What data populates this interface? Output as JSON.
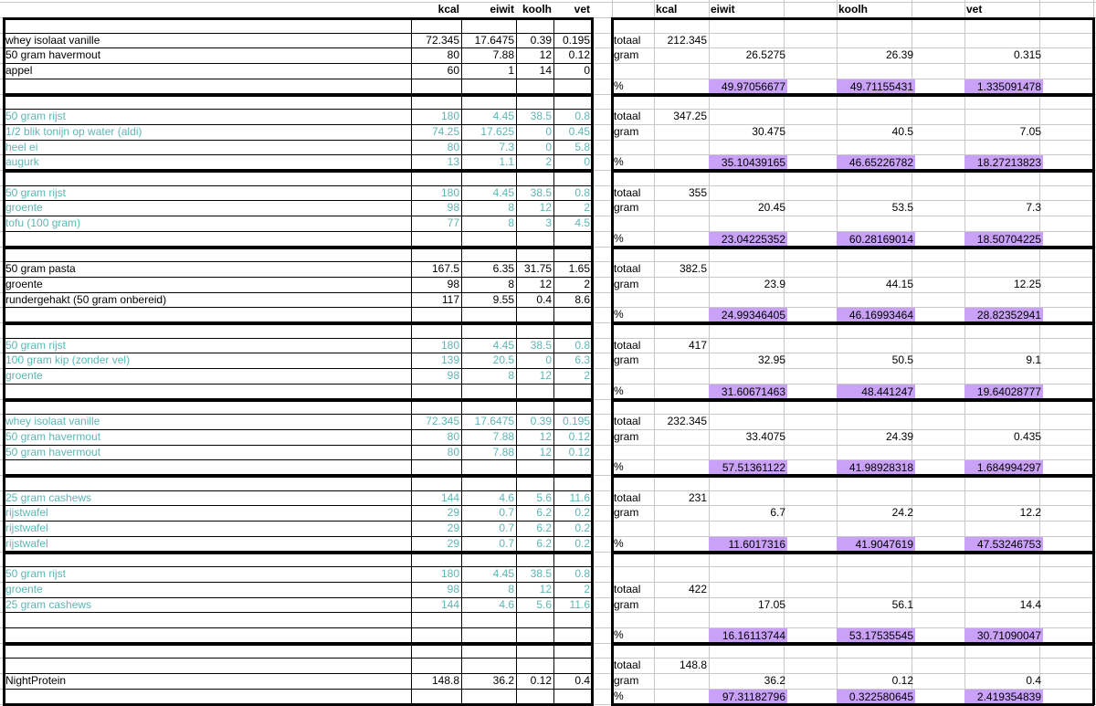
{
  "colors": {
    "teal_text": "#5cb6b6",
    "percent_fill": "#c9a2f7",
    "grid": "#c8c8c8"
  },
  "left": {
    "headers": [
      "kcal",
      "eiwit",
      "koolh",
      "vet"
    ],
    "blocks": [
      {
        "style": "black",
        "rows": [
          {},
          {
            "name": "whey isolaat vanille",
            "kcal": "72.345",
            "eiwit": "17.6475",
            "koolh": "0.39",
            "vet": "0.195"
          },
          {
            "name": "50 gram havermout",
            "kcal": "80",
            "eiwit": "7.88",
            "koolh": "12",
            "vet": "0.12"
          },
          {
            "name": "appel",
            "kcal": "60",
            "eiwit": "1",
            "koolh": "14",
            "vet": "0"
          },
          {}
        ]
      },
      {
        "style": "teal",
        "rows": [
          {},
          {
            "name": "50 gram rijst",
            "kcal": "180",
            "eiwit": "4.45",
            "koolh": "38.5",
            "vet": "0.8"
          },
          {
            "name": "1/2 blik tonijn op water (aldi)",
            "kcal": "74.25",
            "eiwit": "17.625",
            "koolh": "0",
            "vet": "0.45"
          },
          {
            "name": "heel ei",
            "kcal": "80",
            "eiwit": "7.3",
            "koolh": "0",
            "vet": "5.8"
          },
          {
            "name": "augurk",
            "kcal": "13",
            "eiwit": "1.1",
            "koolh": "2",
            "vet": "0"
          }
        ]
      },
      {
        "style": "teal",
        "rows": [
          {},
          {
            "name": "50 gram rijst",
            "kcal": "180",
            "eiwit": "4.45",
            "koolh": "38.5",
            "vet": "0.8"
          },
          {
            "name": "groente",
            "kcal": "98",
            "eiwit": "8",
            "koolh": "12",
            "vet": "2"
          },
          {
            "name": "tofu (100 gram)",
            "kcal": "77",
            "eiwit": "8",
            "koolh": "3",
            "vet": "4.5"
          },
          {}
        ]
      },
      {
        "style": "black",
        "rows": [
          {},
          {
            "name": "50 gram pasta",
            "kcal": "167.5",
            "eiwit": "6.35",
            "koolh": "31.75",
            "vet": "1.65"
          },
          {
            "name": "groente",
            "kcal": "98",
            "eiwit": "8",
            "koolh": "12",
            "vet": "2"
          },
          {
            "name": "rundergehakt (50 gram onbereid)",
            "kcal": "117",
            "eiwit": "9.55",
            "koolh": "0.4",
            "vet": "8.6"
          },
          {}
        ]
      },
      {
        "style": "teal",
        "rows": [
          {},
          {
            "name": "50 gram rijst",
            "kcal": "180",
            "eiwit": "4.45",
            "koolh": "38.5",
            "vet": "0.8"
          },
          {
            "name": "100 gram kip (zonder vel)",
            "kcal": "139",
            "eiwit": "20.5",
            "koolh": "0",
            "vet": "6.3"
          },
          {
            "name": "groente",
            "kcal": "98",
            "eiwit": "8",
            "koolh": "12",
            "vet": "2"
          },
          {}
        ]
      },
      {
        "style": "teal",
        "rows": [
          {},
          {
            "name": "whey isolaat vanille",
            "kcal": "72.345",
            "eiwit": "17.6475",
            "koolh": "0.39",
            "vet": "0.195"
          },
          {
            "name": "50 gram havermout",
            "kcal": "80",
            "eiwit": "7.88",
            "koolh": "12",
            "vet": "0.12"
          },
          {
            "name": "50 gram havermout",
            "kcal": "80",
            "eiwit": "7.88",
            "koolh": "12",
            "vet": "0.12"
          },
          {}
        ]
      },
      {
        "style": "teal",
        "rows": [
          {},
          {
            "name": "25 gram cashews",
            "kcal": "144",
            "eiwit": "4.6",
            "koolh": "5.6",
            "vet": "11.6"
          },
          {
            "name": "rijstwafel",
            "kcal": "29",
            "eiwit": "0.7",
            "koolh": "6.2",
            "vet": "0.2"
          },
          {
            "name": "rijstwafel",
            "kcal": "29",
            "eiwit": "0.7",
            "koolh": "6.2",
            "vet": "0.2"
          },
          {
            "name": "rijstwafel",
            "kcal": "29",
            "eiwit": "0.7",
            "koolh": "6.2",
            "vet": "0.2"
          }
        ]
      },
      {
        "style": "teal",
        "rows": [
          {},
          {
            "name": "50 gram rijst",
            "kcal": "180",
            "eiwit": "4.45",
            "koolh": "38.5",
            "vet": "0.8"
          },
          {
            "name": "groente",
            "kcal": "98",
            "eiwit": "8",
            "koolh": "12",
            "vet": "2"
          },
          {
            "name": "25 gram cashews",
            "kcal": "144",
            "eiwit": "4.6",
            "koolh": "5.6",
            "vet": "11.6"
          },
          {},
          {}
        ]
      },
      {
        "style": "black",
        "rows": [
          {},
          {},
          {
            "name": "NightProtein",
            "kcal": "148.8",
            "eiwit": "36.2",
            "koolh": "0.12",
            "vet": "0.4"
          },
          {}
        ]
      }
    ]
  },
  "right": {
    "headers": [
      "kcal",
      "eiwit",
      "koolh",
      "vet"
    ],
    "labels": {
      "total": "totaal",
      "gram": "gram",
      "percent": "%"
    },
    "blocks": [
      {
        "totaal": "212.345",
        "gram": [
          "26.5275",
          "26.39",
          "0.315"
        ],
        "pct": [
          "49.97056677",
          "49.71155431",
          "1.335091478"
        ]
      },
      {
        "totaal": "347.25",
        "gram": [
          "30.475",
          "40.5",
          "7.05"
        ],
        "pct": [
          "35.10439165",
          "46.65226782",
          "18.27213823"
        ]
      },
      {
        "totaal": "355",
        "gram": [
          "20.45",
          "53.5",
          "7.3"
        ],
        "pct": [
          "23.04225352",
          "60.28169014",
          "18.50704225"
        ]
      },
      {
        "totaal": "382.5",
        "gram": [
          "23.9",
          "44.15",
          "12.25"
        ],
        "pct": [
          "24.99346405",
          "46.16993464",
          "28.82352941"
        ]
      },
      {
        "totaal": "417",
        "gram": [
          "32.95",
          "50.5",
          "9.1"
        ],
        "pct": [
          "31.60671463",
          "48.441247",
          "19.64028777"
        ]
      },
      {
        "totaal": "232.345",
        "gram": [
          "33.4075",
          "24.39",
          "0.435"
        ],
        "pct": [
          "57.51361122",
          "41.98928318",
          "1.684994297"
        ]
      },
      {
        "totaal": "231",
        "gram": [
          "6.7",
          "24.2",
          "12.2"
        ],
        "pct": [
          "11.6017316",
          "41.9047619",
          "47.53246753"
        ]
      },
      {
        "totaal": "422",
        "gram": [
          "17.05",
          "56.1",
          "14.4"
        ],
        "pct": [
          "16.16113744",
          "53.17535545",
          "30.71090047"
        ]
      },
      {
        "totaal": "148.8",
        "gram": [
          "36.2",
          "0.12",
          "0.4"
        ],
        "pct": [
          "97.31182796",
          "0.322580645",
          "2.419354839"
        ]
      }
    ]
  }
}
